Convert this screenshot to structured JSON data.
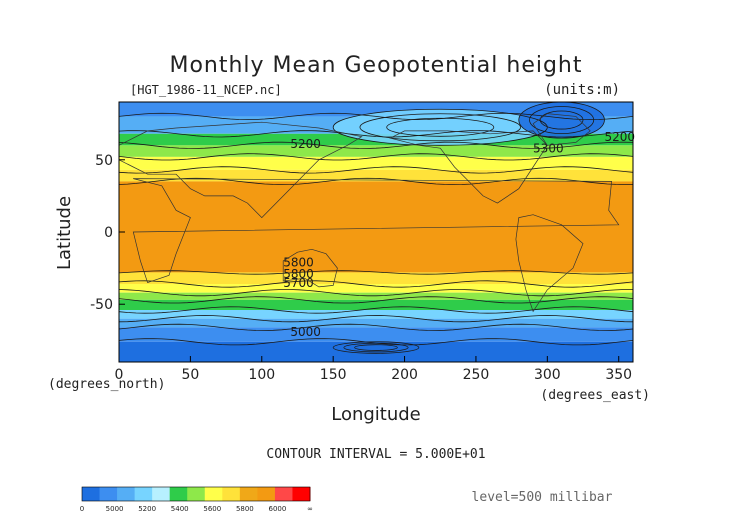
{
  "chart_data": {
    "type": "heatmap",
    "title": "Monthly Mean Geopotential height",
    "file_label": "[HGT_1986-11_NCEP.nc]",
    "units_label": "(units:m)",
    "xlabel": "Longitude",
    "ylabel": "Latitude",
    "x_unit_label": "(degrees_east)",
    "y_unit_label": "(degrees_north)",
    "xlim": [
      0,
      360
    ],
    "ylim": [
      -90,
      90
    ],
    "x_ticks": [
      "0",
      "50",
      "100",
      "150",
      "200",
      "250",
      "300",
      "350"
    ],
    "y_ticks": [
      "50",
      "0",
      "-50"
    ],
    "contour_interval_label": "CONTOUR INTERVAL = 5.000E+01",
    "level_label": "level=500 millibar",
    "contour_labels": [
      "5200",
      "5300",
      "5200",
      "5800",
      "5800",
      "5700",
      "5000"
    ],
    "colorbar": {
      "tick_labels": [
        "0",
        "5000",
        "5200",
        "5400",
        "5600",
        "5800",
        "6000",
        "∞"
      ],
      "colors": [
        "#1e6fe0",
        "#3d8ef0",
        "#55aef5",
        "#77d4ff",
        "#b7f0ff",
        "#2fcc4a",
        "#8ee84a",
        "#ffff4a",
        "#ffe23a",
        "#f0a818",
        "#f39a12",
        "#ff4848",
        "#ff0000"
      ]
    },
    "bands": [
      {
        "lat_from": 90,
        "lat_to": 80,
        "value": 5150,
        "color": "#3d8ef0"
      },
      {
        "lat_from": 80,
        "lat_to": 68,
        "value": 5250,
        "color": "#55aef5"
      },
      {
        "lat_from": 68,
        "lat_to": 60,
        "value": 5400,
        "color": "#2fcc4a"
      },
      {
        "lat_from": 60,
        "lat_to": 52,
        "value": 5550,
        "color": "#8ee84a"
      },
      {
        "lat_from": 52,
        "lat_to": 43,
        "value": 5650,
        "color": "#ffff4a"
      },
      {
        "lat_from": 43,
        "lat_to": 35,
        "value": 5750,
        "color": "#ffe23a"
      },
      {
        "lat_from": 35,
        "lat_to": -28,
        "value": 5850,
        "color": "#f39a12"
      },
      {
        "lat_from": -28,
        "lat_to": -36,
        "value": 5750,
        "color": "#ffe23a"
      },
      {
        "lat_from": -36,
        "lat_to": -42,
        "value": 5650,
        "color": "#ffff4a"
      },
      {
        "lat_from": -42,
        "lat_to": -47,
        "value": 5550,
        "color": "#8ee84a"
      },
      {
        "lat_from": -47,
        "lat_to": -54,
        "value": 5450,
        "color": "#2fcc4a"
      },
      {
        "lat_from": -54,
        "lat_to": -60,
        "value": 5350,
        "color": "#77d4ff"
      },
      {
        "lat_from": -60,
        "lat_to": -66,
        "value": 5250,
        "color": "#55aef5"
      },
      {
        "lat_from": -66,
        "lat_to": -76,
        "value": 5150,
        "color": "#3d8ef0"
      },
      {
        "lat_from": -76,
        "lat_to": -90,
        "value": 5000,
        "color": "#1e6fe0"
      }
    ],
    "features": [
      {
        "name": "arctic-high-light-region",
        "lon": [
          150,
          300
        ],
        "lat": [
          85,
          60
        ],
        "color": "#77d4ff"
      },
      {
        "name": "north-pacific-low-region",
        "lon": [
          280,
          340
        ],
        "lat": [
          90,
          65
        ],
        "color": "#1e6fe0"
      }
    ]
  }
}
